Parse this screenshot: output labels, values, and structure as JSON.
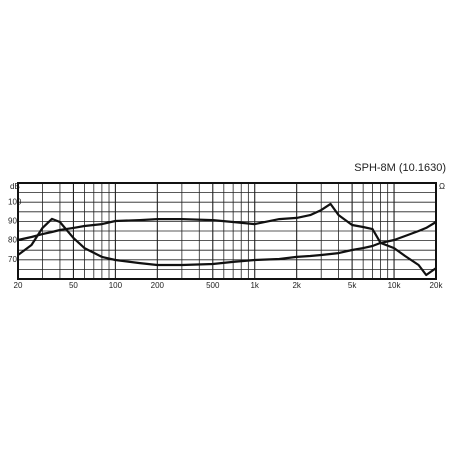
{
  "chart_data": {
    "type": "line",
    "title": "SPH-8M (10.1630)",
    "y_label": "dB",
    "y2_label": "Ω",
    "x": [
      20,
      25,
      30,
      35,
      40,
      50,
      60,
      80,
      100,
      150,
      200,
      300,
      500,
      700,
      1000,
      1500,
      2000,
      2500,
      3000,
      3500,
      4000,
      5000,
      6000,
      7000,
      8000,
      10000,
      12000,
      15000,
      17000,
      20000
    ],
    "series": [
      {
        "color": "#111111",
        "values": [
          80.3,
          81.9,
          83.4,
          84.5,
          85.5,
          86.6,
          87.6,
          88.6,
          90.2,
          90.7,
          91.2,
          91.2,
          90.7,
          89.7,
          88.6,
          91.2,
          91.8,
          93.3,
          95.9,
          99.1,
          93.3,
          88.1,
          87.1,
          86.0,
          78.8,
          76.1,
          72.0,
          67.3,
          62.1,
          65.7
        ]
      },
      {
        "color": "#111111",
        "values": [
          72.5,
          77.7,
          86.6,
          91.3,
          89.7,
          81.4,
          76.1,
          71.5,
          69.9,
          68.3,
          67.3,
          67.3,
          67.8,
          68.9,
          69.9,
          70.4,
          71.5,
          72.0,
          72.5,
          73.0,
          73.5,
          75.1,
          76.1,
          77.2,
          78.8,
          80.3,
          82.4,
          85.0,
          86.6,
          89.7
        ]
      }
    ],
    "xscale": "log",
    "xlim": [
      20,
      20000
    ],
    "xticks": [
      20,
      50,
      100,
      200,
      500,
      {
        "value": 1000,
        "label": "1k"
      },
      {
        "value": 2000,
        "label": "2k"
      },
      {
        "value": 5000,
        "label": "5k"
      },
      {
        "value": 10000,
        "label": "10k"
      },
      {
        "value": 20000,
        "label": "20k"
      }
    ],
    "minor_xticks": [
      30,
      40,
      60,
      70,
      80,
      90,
      300,
      400,
      600,
      700,
      800,
      900,
      3000,
      4000,
      6000,
      7000,
      8000,
      9000
    ],
    "ylim": [
      60,
      110
    ],
    "yticks": [
      70,
      80,
      90,
      100
    ],
    "minor_yticks": [
      65,
      75,
      85,
      95,
      105
    ],
    "grid": true
  }
}
